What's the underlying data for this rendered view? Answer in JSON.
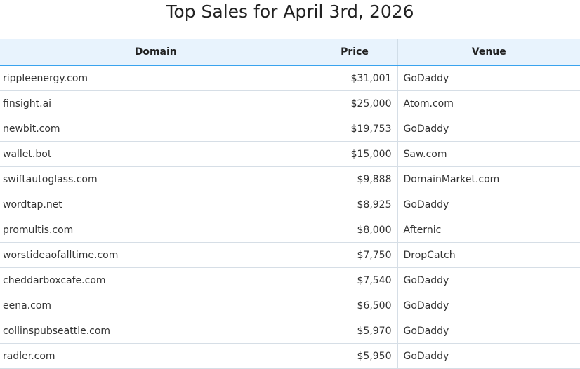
{
  "title": "Top Sales for April 3rd, 2026",
  "table": {
    "headers": [
      "Domain",
      "Price",
      "Venue"
    ],
    "rows": [
      [
        "rippleenergy.com",
        "$31,001",
        "GoDaddy"
      ],
      [
        "finsight.ai",
        "$25,000",
        "Atom.com"
      ],
      [
        "newbit.com",
        "$19,753",
        "GoDaddy"
      ],
      [
        "wallet.bot",
        "$15,000",
        "Saw.com"
      ],
      [
        "swiftautoglass.com",
        "$9,888",
        "DomainMarket.com"
      ],
      [
        "wordtap.net",
        "$8,925",
        "GoDaddy"
      ],
      [
        "promultis.com",
        "$8,000",
        "Afternic"
      ],
      [
        "worstideaofalltime.com",
        "$7,750",
        "DropCatch"
      ],
      [
        "cheddarboxcafe.com",
        "$7,540",
        "GoDaddy"
      ],
      [
        "eena.com",
        "$6,500",
        "GoDaddy"
      ],
      [
        "collinspubseattle.com",
        "$5,970",
        "GoDaddy"
      ],
      [
        "radler.com",
        "$5,950",
        "GoDaddy"
      ]
    ]
  },
  "colors": {
    "header_bg": "#e8f3fd",
    "accent": "#3aa3ee"
  }
}
